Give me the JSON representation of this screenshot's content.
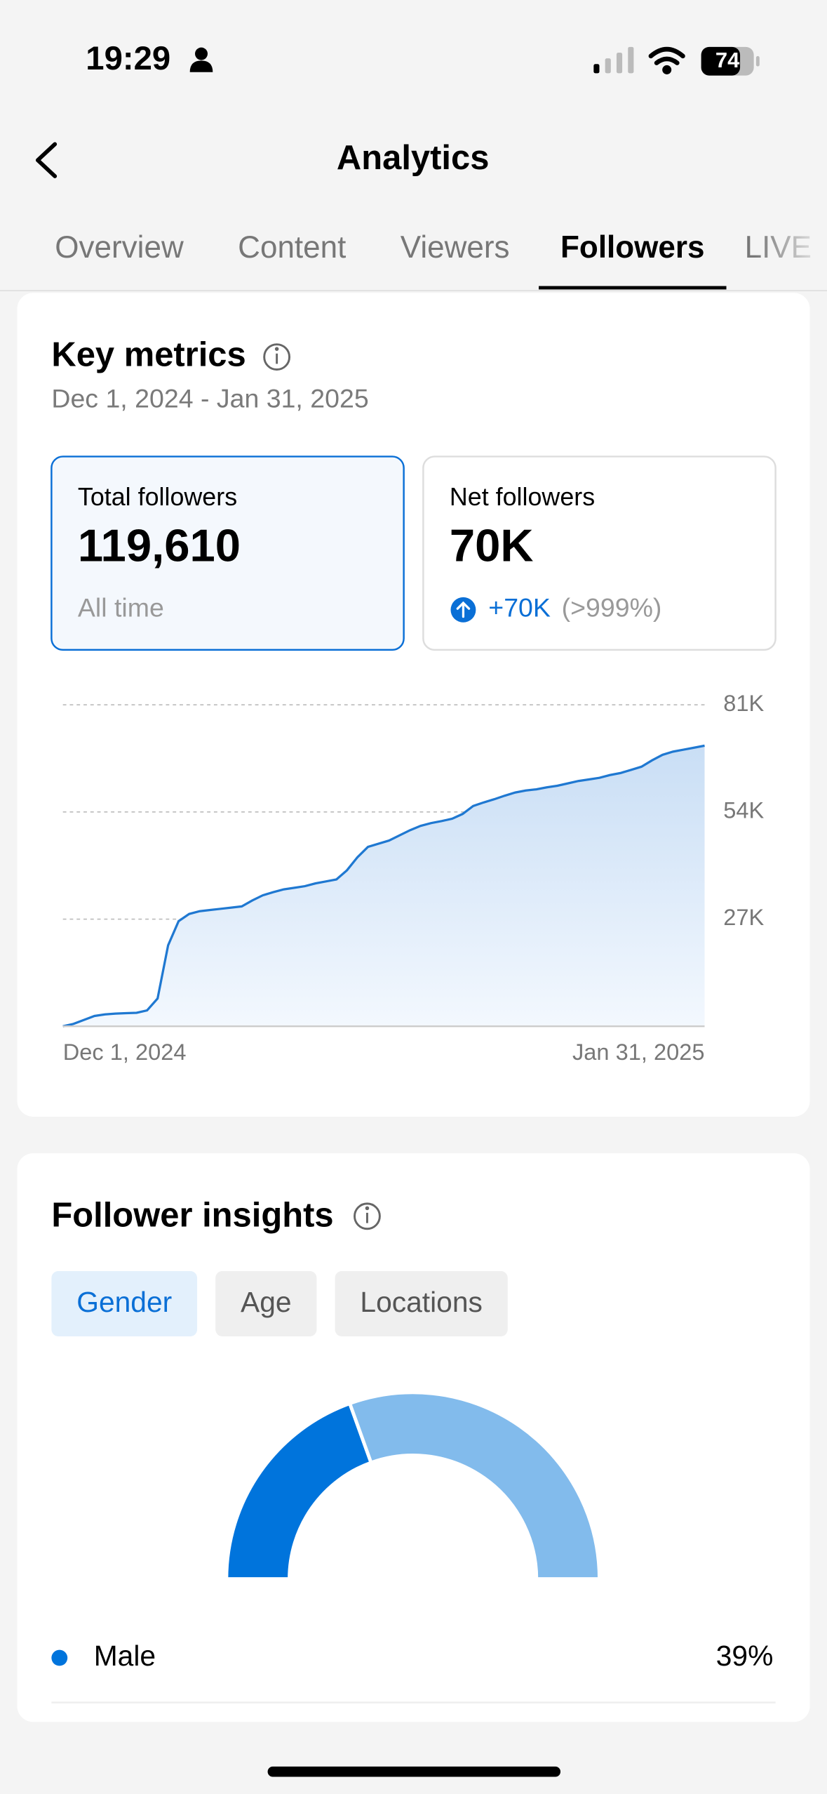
{
  "status": {
    "time": "19:29",
    "battery": "74"
  },
  "header": {
    "title": "Analytics"
  },
  "tabs": {
    "items": [
      "Overview",
      "Content",
      "Viewers",
      "Followers",
      "LIVE"
    ],
    "active": 3
  },
  "key_metrics": {
    "title": "Key metrics",
    "date_range": "Dec 1, 2024 - Jan 31, 2025",
    "cards": [
      {
        "label": "Total followers",
        "value": "119,610",
        "note": "All time"
      },
      {
        "label": "Net followers",
        "value": "70K",
        "change": "+70K",
        "change_pct": "(>999%)"
      }
    ]
  },
  "follower_insights": {
    "title": "Follower insights",
    "tabs": [
      "Gender",
      "Age",
      "Locations"
    ],
    "active": 0
  },
  "chart_data": [
    {
      "type": "line",
      "color": "#1f78d1",
      "categories": [
        "Dec 1, 2024",
        null,
        null,
        null,
        null,
        null,
        null,
        null,
        null,
        null,
        null,
        null,
        null,
        null,
        null,
        null,
        null,
        null,
        null,
        null,
        null,
        null,
        null,
        null,
        null,
        null,
        null,
        null,
        null,
        null,
        null,
        null,
        null,
        null,
        null,
        null,
        null,
        null,
        null,
        null,
        null,
        null,
        null,
        null,
        null,
        null,
        null,
        null,
        null,
        null,
        null,
        null,
        null,
        null,
        null,
        null,
        null,
        null,
        null,
        null,
        null,
        "Jan 31, 2025"
      ],
      "values": [
        0,
        600,
        1600,
        2600,
        3000,
        3200,
        3300,
        3400,
        4000,
        7000,
        20400,
        26500,
        28300,
        29000,
        29300,
        29600,
        29900,
        30200,
        31700,
        33000,
        33800,
        34500,
        34900,
        35300,
        36000,
        36500,
        37000,
        39300,
        42600,
        45200,
        46000,
        46800,
        48100,
        49400,
        50500,
        51200,
        51700,
        52300,
        53500,
        55500,
        56400,
        57200,
        58100,
        58900,
        59400,
        59700,
        60200,
        60600,
        61200,
        61800,
        62200,
        62600,
        63300,
        63800,
        64600,
        65400,
        67000,
        68400,
        69200,
        69700,
        70200,
        70700
      ],
      "ylim": [
        0,
        81000
      ],
      "yticks": [
        {
          "value": 27000,
          "label": "27K"
        },
        {
          "value": 54000,
          "label": "54K"
        },
        {
          "value": 81000,
          "label": "81K"
        }
      ],
      "grid": true
    },
    {
      "type": "half-donut",
      "categories": [
        "Male",
        null
      ],
      "values": [
        39,
        61
      ],
      "value_labels": [
        "39%",
        null
      ],
      "colors": [
        "#0074dc",
        "#82bbec"
      ]
    }
  ]
}
